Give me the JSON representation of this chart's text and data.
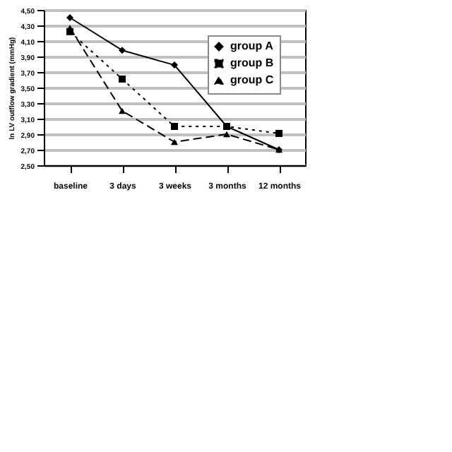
{
  "chart_data": {
    "type": "line",
    "ylabel": "ln LV outflow gradient (mmHg)",
    "categories": [
      "baseline",
      "3 days",
      "3 weeks",
      "3 months",
      "12 months"
    ],
    "series": [
      {
        "name": "group A",
        "color": "#000000",
        "marker": "diamond",
        "line_style": "solid",
        "values": [
          4.4,
          3.98,
          3.79,
          3.0,
          2.7
        ]
      },
      {
        "name": "group B",
        "color": "#000000",
        "marker": "square",
        "line_style": "dotted",
        "values": [
          4.22,
          3.61,
          3.0,
          3.0,
          2.91
        ]
      },
      {
        "name": "group C",
        "color": "#000000",
        "marker": "triangle",
        "line_style": "dashed",
        "values": [
          4.27,
          3.2,
          2.8,
          2.9,
          2.7
        ]
      }
    ],
    "ylim": [
      2.5,
      4.5
    ],
    "yticks": [
      {
        "value": 2.5,
        "label": "2,50"
      },
      {
        "value": 2.7,
        "label": "2,70"
      },
      {
        "value": 2.9,
        "label": "2,90"
      },
      {
        "value": 3.1,
        "label": "3,10"
      },
      {
        "value": 3.3,
        "label": "3,30"
      },
      {
        "value": 3.5,
        "label": "3,50"
      },
      {
        "value": 3.7,
        "label": "3,70"
      },
      {
        "value": 3.9,
        "label": "3,90"
      },
      {
        "value": 4.1,
        "label": "4,10"
      },
      {
        "value": 4.3,
        "label": "4,30"
      },
      {
        "value": 4.5,
        "label": "4,50"
      }
    ],
    "grid": "y",
    "legend": "top right"
  }
}
